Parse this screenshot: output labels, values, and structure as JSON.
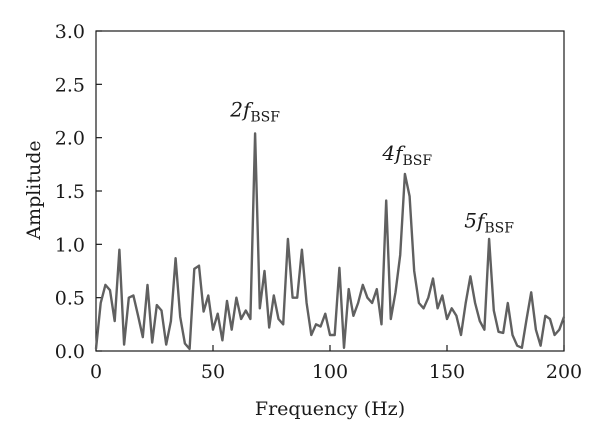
{
  "chart_data": {
    "type": "line",
    "xlabel": "Frequency (Hz)",
    "ylabel": "Amplitude",
    "xlim": [
      0,
      200
    ],
    "ylim": [
      0,
      3.0
    ],
    "xticks": [
      0,
      50,
      100,
      150,
      200
    ],
    "xtick_labels": [
      "0",
      "50",
      "100",
      "150",
      "200"
    ],
    "yticks": [
      0,
      0.5,
      1.0,
      1.5,
      2.0,
      2.5,
      3.0
    ],
    "ytick_labels": [
      "0.0",
      "0.5",
      "1.0",
      "1.5",
      "2.0",
      "2.5",
      "3.0"
    ],
    "grid": false,
    "legend": "none",
    "line_color": "#606060",
    "series": [
      {
        "x": [
          0,
          2,
          4,
          6,
          8,
          10,
          12,
          14,
          16,
          18,
          20,
          22,
          24,
          26,
          28,
          30,
          32,
          34,
          36,
          38,
          40,
          42,
          44,
          46,
          48,
          50,
          52,
          54,
          56,
          58,
          60,
          62,
          64,
          66,
          68,
          70,
          72,
          74,
          76,
          78,
          80,
          82,
          84,
          86,
          88,
          90,
          92,
          94,
          96,
          98,
          100,
          102,
          104,
          106,
          108,
          110,
          112,
          114,
          116,
          118,
          120,
          122,
          124,
          126,
          128,
          130,
          132,
          134,
          136,
          138,
          140,
          142,
          144,
          146,
          148,
          150,
          152,
          154,
          156,
          158,
          160,
          162,
          164,
          166,
          168,
          170,
          172,
          174,
          176,
          178,
          180,
          182,
          184,
          186,
          188,
          190,
          192,
          194,
          196,
          198,
          200
        ],
        "y": [
          0.02,
          0.45,
          0.62,
          0.57,
          0.28,
          0.95,
          0.06,
          0.5,
          0.52,
          0.33,
          0.13,
          0.62,
          0.08,
          0.43,
          0.38,
          0.06,
          0.28,
          0.87,
          0.32,
          0.07,
          0.02,
          0.77,
          0.8,
          0.37,
          0.52,
          0.2,
          0.35,
          0.1,
          0.47,
          0.2,
          0.5,
          0.3,
          0.38,
          0.3,
          2.04,
          0.4,
          0.75,
          0.22,
          0.52,
          0.3,
          0.25,
          1.05,
          0.5,
          0.5,
          0.95,
          0.45,
          0.15,
          0.25,
          0.23,
          0.35,
          0.15,
          0.15,
          0.78,
          0.03,
          0.58,
          0.33,
          0.45,
          0.62,
          0.5,
          0.45,
          0.58,
          0.25,
          1.41,
          0.3,
          0.55,
          0.9,
          1.66,
          1.45,
          0.75,
          0.45,
          0.4,
          0.5,
          0.68,
          0.4,
          0.52,
          0.3,
          0.4,
          0.33,
          0.15,
          0.45,
          0.7,
          0.45,
          0.28,
          0.2,
          1.05,
          0.38,
          0.18,
          0.17,
          0.45,
          0.15,
          0.05,
          0.03,
          0.3,
          0.55,
          0.2,
          0.05,
          0.33,
          0.3,
          0.15,
          0.2,
          0.32
        ]
      }
    ],
    "annotations": [
      {
        "main": "2f",
        "sub": "BSF",
        "x": 68,
        "y": 2.2
      },
      {
        "main": "4f",
        "sub": "BSF",
        "x": 133,
        "y": 1.79
      },
      {
        "main": "5f",
        "sub": "BSF",
        "x": 168,
        "y": 1.16
      }
    ]
  }
}
